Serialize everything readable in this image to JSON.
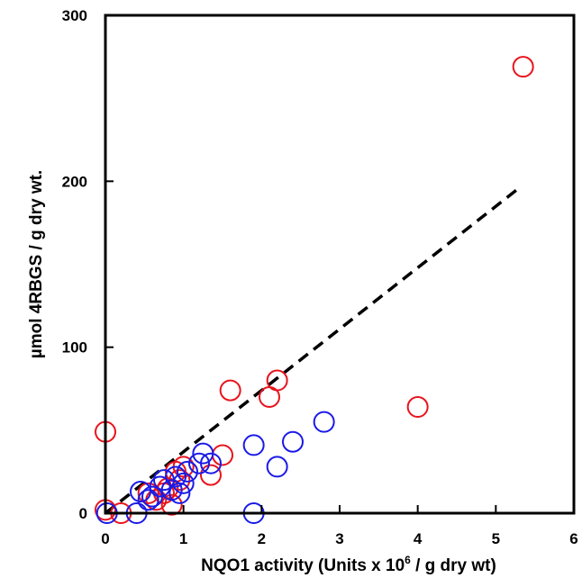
{
  "chart_data": {
    "type": "scatter",
    "title": "",
    "xlabel": "NQO1 activity (Units x 10",
    "xlabel_sup": "6",
    "xlabel_tail": " / g dry wt)",
    "ylabel": "µmol 4RBGS / g dry wt.",
    "xlim": [
      0,
      6
    ],
    "ylim": [
      0,
      300
    ],
    "xticks": [
      0,
      1,
      2,
      3,
      4,
      5,
      6
    ],
    "yticks": [
      0,
      100,
      200,
      300
    ],
    "grid": false,
    "legend": "none",
    "series": [
      {
        "color": "#e8141c",
        "marker": "open-circle",
        "points": [
          [
            0.0,
            49
          ],
          [
            0.0,
            2
          ],
          [
            0.2,
            0
          ],
          [
            0.55,
            12
          ],
          [
            0.65,
            8
          ],
          [
            0.75,
            12
          ],
          [
            0.8,
            15
          ],
          [
            0.85,
            5
          ],
          [
            0.9,
            25
          ],
          [
            0.95,
            20
          ],
          [
            1.0,
            28
          ],
          [
            1.35,
            23
          ],
          [
            1.5,
            35
          ],
          [
            1.6,
            74
          ],
          [
            2.1,
            70
          ],
          [
            2.2,
            80
          ],
          [
            4.0,
            64
          ],
          [
            5.35,
            269
          ]
        ]
      },
      {
        "color": "#1a1ae6",
        "marker": "open-circle",
        "points": [
          [
            0.02,
            0
          ],
          [
            0.4,
            0
          ],
          [
            0.45,
            13
          ],
          [
            0.55,
            8
          ],
          [
            0.6,
            10
          ],
          [
            0.7,
            16
          ],
          [
            0.75,
            20
          ],
          [
            0.85,
            14
          ],
          [
            0.9,
            22
          ],
          [
            0.95,
            12
          ],
          [
            1.0,
            18
          ],
          [
            1.05,
            25
          ],
          [
            1.2,
            30
          ],
          [
            1.25,
            36
          ],
          [
            1.35,
            30
          ],
          [
            1.9,
            41
          ],
          [
            1.9,
            0
          ],
          [
            2.2,
            28
          ],
          [
            2.4,
            43
          ],
          [
            2.8,
            55
          ]
        ]
      }
    ],
    "fit_line": {
      "style": "dashed",
      "color": "#000000",
      "from": [
        0.0,
        0
      ],
      "to": [
        5.3,
        196
      ]
    }
  }
}
